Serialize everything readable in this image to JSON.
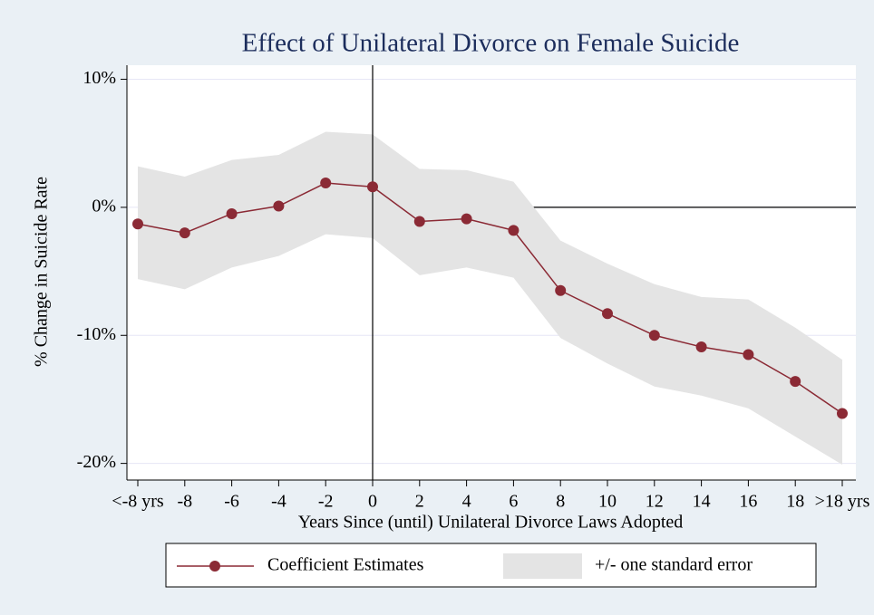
{
  "chart_data": {
    "type": "line",
    "title": "Effect of Unilateral Divorce on Female Suicide",
    "x_label": "Years Since (until) Unilateral Divorce Laws Adopted",
    "y_label": "% Change in Suicide Rate",
    "categories": [
      "<-8 yrs",
      "-8",
      "-6",
      "-4",
      "-2",
      "0",
      "2",
      "4",
      "6",
      "8",
      "10",
      "12",
      "14",
      "16",
      "18",
      ">18 yrs"
    ],
    "series": [
      {
        "name": "Coefficient Estimates",
        "color": "#8b2a35",
        "values": [
          -1.3,
          -2.0,
          -0.5,
          0.1,
          1.9,
          1.6,
          -1.1,
          -0.9,
          -1.8,
          -6.5,
          -8.3,
          -10.0,
          -10.9,
          -11.5,
          -13.6,
          -16.1
        ]
      }
    ],
    "band": {
      "name": "+/- one standard error",
      "color": "#e4e4e4",
      "upper": [
        3.2,
        2.4,
        3.7,
        4.1,
        5.9,
        5.7,
        3.0,
        2.9,
        2.0,
        -2.6,
        -4.4,
        -6.0,
        -7.0,
        -7.2,
        -9.4,
        -11.9
      ],
      "lower": [
        -5.6,
        -6.4,
        -4.7,
        -3.8,
        -2.1,
        -2.4,
        -5.3,
        -4.7,
        -5.5,
        -10.2,
        -12.2,
        -14.0,
        -14.7,
        -15.7,
        -17.9,
        -20.1
      ]
    },
    "ylim": [
      -21.3,
      11.1
    ],
    "yticks": [
      {
        "value": 10,
        "label": "10%"
      },
      {
        "value": 0,
        "label": "0%"
      },
      {
        "value": -10,
        "label": "-10%"
      },
      {
        "value": -20,
        "label": "-20%"
      }
    ],
    "grid": true,
    "xline": "0",
    "yline": 0,
    "legend": "bottom"
  }
}
